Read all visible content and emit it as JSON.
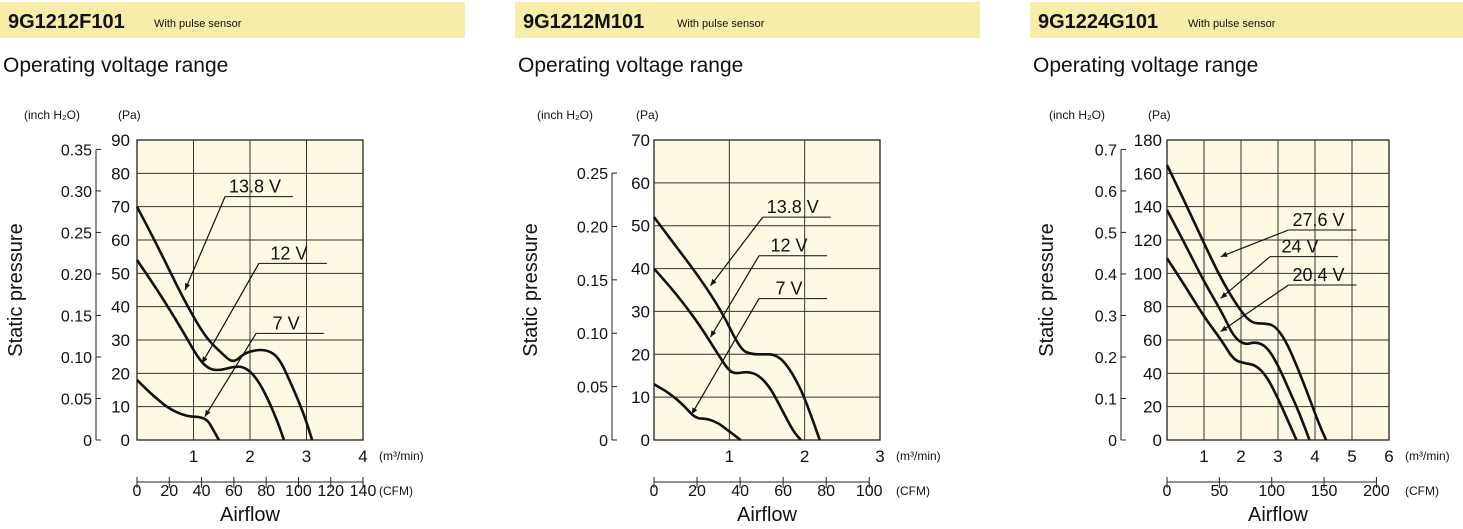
{
  "chart_data": [
    {
      "type": "line",
      "model": "9G1212F101",
      "sensor_note": "With pulse sensor",
      "title": "Operating voltage range",
      "xlabel": "Airflow",
      "ylabel": "Static pressure",
      "x_unit": "(m³/min)",
      "x2_unit": "(CFM)",
      "y_unit": "(Pa)",
      "y2_unit": "(inch H₂O)",
      "xlim": [
        0,
        4
      ],
      "ylim": [
        0,
        90
      ],
      "x_ticks": [
        "1",
        "2",
        "3",
        "4"
      ],
      "x_tick_values": [
        1,
        2,
        3,
        4
      ],
      "y_ticks": [
        "0",
        "10",
        "20",
        "30",
        "40",
        "50",
        "60",
        "70",
        "80",
        "90"
      ],
      "y_tick_values": [
        0,
        10,
        20,
        30,
        40,
        50,
        60,
        70,
        80,
        90
      ],
      "cfm_ticks": [
        "0",
        "20",
        "40",
        "60",
        "80",
        "100",
        "120",
        "140"
      ],
      "cfm_tick_values": [
        0,
        20,
        40,
        60,
        80,
        100,
        120,
        140
      ],
      "inh2o_ticks": [
        "0",
        "0.05",
        "0.10",
        "0.15",
        "0.20",
        "0.25",
        "0.30",
        "0.35"
      ],
      "inh2o_tick_values": [
        0,
        0.05,
        0.1,
        0.15,
        0.2,
        0.25,
        0.3,
        0.35
      ],
      "grid": true,
      "series": [
        {
          "name": "13.8 V",
          "label_pos": [
            1.7,
            73
          ],
          "arrow_at": [
            0.85,
            45
          ],
          "points": [
            [
              0,
              70
            ],
            [
              0.4,
              57
            ],
            [
              0.8,
              43
            ],
            [
              1.2,
              31
            ],
            [
              1.5,
              26
            ],
            [
              1.7,
              23
            ],
            [
              1.9,
              26
            ],
            [
              2.1,
              27
            ],
            [
              2.3,
              27
            ],
            [
              2.5,
              25
            ],
            [
              2.7,
              18
            ],
            [
              2.95,
              8
            ],
            [
              3.1,
              0
            ]
          ]
        },
        {
          "name": "12 V",
          "label_pos": [
            2.3,
            53
          ],
          "arrow_at": [
            1.15,
            23
          ],
          "points": [
            [
              0,
              54
            ],
            [
              0.4,
              44
            ],
            [
              0.8,
              33
            ],
            [
              1.1,
              24
            ],
            [
              1.3,
              21
            ],
            [
              1.5,
              21
            ],
            [
              1.7,
              22
            ],
            [
              1.9,
              22
            ],
            [
              2.1,
              19
            ],
            [
              2.3,
              13
            ],
            [
              2.5,
              5
            ],
            [
              2.6,
              0
            ]
          ]
        },
        {
          "name": "7 V",
          "label_pos": [
            2.25,
            32
          ],
          "arrow_at": [
            1.2,
            7
          ],
          "points": [
            [
              0,
              18
            ],
            [
              0.3,
              13
            ],
            [
              0.6,
              9
            ],
            [
              0.9,
              7
            ],
            [
              1.1,
              7
            ],
            [
              1.25,
              6
            ],
            [
              1.35,
              3
            ],
            [
              1.45,
              0
            ]
          ]
        }
      ]
    },
    {
      "type": "line",
      "model": "9G1212M101",
      "sensor_note": "With pulse sensor",
      "title": "Operating voltage range",
      "xlabel": "Airflow",
      "ylabel": "Static pressure",
      "x_unit": "(m³/min)",
      "x2_unit": "(CFM)",
      "y_unit": "(Pa)",
      "y2_unit": "(inch H₂O)",
      "xlim": [
        0,
        3
      ],
      "ylim": [
        0,
        70
      ],
      "x_ticks": [
        "1",
        "2",
        "3"
      ],
      "x_tick_values": [
        1,
        2,
        3
      ],
      "y_ticks": [
        "0",
        "10",
        "20",
        "30",
        "40",
        "50",
        "60",
        "70"
      ],
      "y_tick_values": [
        0,
        10,
        20,
        30,
        40,
        50,
        60,
        70
      ],
      "cfm_ticks": [
        "0",
        "20",
        "40",
        "60",
        "80",
        "100"
      ],
      "cfm_tick_values": [
        0,
        20,
        40,
        60,
        80,
        100
      ],
      "inh2o_ticks": [
        "0",
        "0.05",
        "0.10",
        "0.15",
        "0.20",
        "0.25"
      ],
      "inh2o_tick_values": [
        0,
        0.05,
        0.1,
        0.15,
        0.2,
        0.25
      ],
      "grid": true,
      "series": [
        {
          "name": "13.8 V",
          "label_pos": [
            1.55,
            52
          ],
          "arrow_at": [
            0.75,
            36
          ],
          "points": [
            [
              0,
              52
            ],
            [
              0.3,
              45
            ],
            [
              0.6,
              38
            ],
            [
              0.9,
              30
            ],
            [
              1.15,
              21
            ],
            [
              1.3,
              20
            ],
            [
              1.45,
              20
            ],
            [
              1.6,
              20
            ],
            [
              1.75,
              18
            ],
            [
              1.95,
              12
            ],
            [
              2.1,
              5
            ],
            [
              2.2,
              0
            ]
          ]
        },
        {
          "name": "12 V",
          "label_pos": [
            1.5,
            43
          ],
          "arrow_at": [
            0.75,
            24
          ],
          "points": [
            [
              0,
              40
            ],
            [
              0.3,
              34
            ],
            [
              0.6,
              27
            ],
            [
              0.85,
              20
            ],
            [
              1.0,
              16
            ],
            [
              1.1,
              15.5
            ],
            [
              1.25,
              16
            ],
            [
              1.4,
              15
            ],
            [
              1.55,
              12
            ],
            [
              1.7,
              7
            ],
            [
              1.85,
              2
            ],
            [
              1.95,
              0
            ]
          ]
        },
        {
          "name": "7 V",
          "label_pos": [
            1.5,
            33
          ],
          "arrow_at": [
            0.5,
            6
          ],
          "points": [
            [
              0,
              13
            ],
            [
              0.2,
              11
            ],
            [
              0.4,
              8
            ],
            [
              0.55,
              5
            ],
            [
              0.7,
              5
            ],
            [
              0.85,
              4
            ],
            [
              1.0,
              2
            ],
            [
              1.15,
              0
            ]
          ]
        }
      ]
    },
    {
      "type": "line",
      "model": "9G1224G101",
      "sensor_note": "With pulse sensor",
      "title": "Operating voltage range",
      "xlabel": "Airflow",
      "ylabel": "Static pressure",
      "x_unit": "(m³/min)",
      "x2_unit": "(CFM)",
      "y_unit": "(Pa)",
      "y2_unit": "(inch H₂O)",
      "xlim": [
        0,
        6
      ],
      "ylim": [
        0,
        180
      ],
      "x_ticks": [
        "1",
        "2",
        "3",
        "4",
        "5",
        "6"
      ],
      "x_tick_values": [
        1,
        2,
        3,
        4,
        5,
        6
      ],
      "y_ticks": [
        "0",
        "20",
        "40",
        "60",
        "80",
        "100",
        "120",
        "140",
        "160",
        "180"
      ],
      "y_tick_values": [
        0,
        20,
        40,
        60,
        80,
        100,
        120,
        140,
        160,
        180
      ],
      "cfm_ticks": [
        "0",
        "50",
        "100",
        "150",
        "200"
      ],
      "cfm_tick_values": [
        0,
        50,
        100,
        150,
        200
      ],
      "inh2o_ticks": [
        "0",
        "0.1",
        "0.2",
        "0.3",
        "0.4",
        "0.5",
        "0.6",
        "0.7"
      ],
      "inh2o_tick_values": [
        0,
        0.1,
        0.2,
        0.3,
        0.4,
        0.5,
        0.6,
        0.7
      ],
      "grid": true,
      "series": [
        {
          "name": "27.6 V",
          "label_pos": [
            3.5,
            126
          ],
          "arrow_at": [
            1.45,
            110
          ],
          "points": [
            [
              0,
              165
            ],
            [
              0.5,
              142
            ],
            [
              1.0,
              118
            ],
            [
              1.5,
              95
            ],
            [
              2.0,
              77
            ],
            [
              2.3,
              70
            ],
            [
              2.6,
              70
            ],
            [
              2.9,
              69
            ],
            [
              3.2,
              60
            ],
            [
              3.5,
              45
            ],
            [
              3.8,
              28
            ],
            [
              4.1,
              10
            ],
            [
              4.3,
              0
            ]
          ]
        },
        {
          "name": "24 V",
          "label_pos": [
            3.0,
            110
          ],
          "arrow_at": [
            1.45,
            85
          ],
          "points": [
            [
              0,
              138
            ],
            [
              0.5,
              117
            ],
            [
              1.0,
              95
            ],
            [
              1.5,
              76
            ],
            [
              1.8,
              62
            ],
            [
              2.1,
              57
            ],
            [
              2.4,
              59
            ],
            [
              2.7,
              56
            ],
            [
              3.0,
              45
            ],
            [
              3.3,
              30
            ],
            [
              3.6,
              15
            ],
            [
              3.85,
              0
            ]
          ]
        },
        {
          "name": "20.4 V",
          "label_pos": [
            3.5,
            93
          ],
          "arrow_at": [
            1.45,
            65
          ],
          "points": [
            [
              0,
              109
            ],
            [
              0.5,
              92
            ],
            [
              1.0,
              74
            ],
            [
              1.5,
              59
            ],
            [
              1.8,
              48
            ],
            [
              2.1,
              46
            ],
            [
              2.4,
              45
            ],
            [
              2.7,
              38
            ],
            [
              3.0,
              25
            ],
            [
              3.3,
              10
            ],
            [
              3.5,
              0
            ]
          ]
        }
      ]
    }
  ]
}
